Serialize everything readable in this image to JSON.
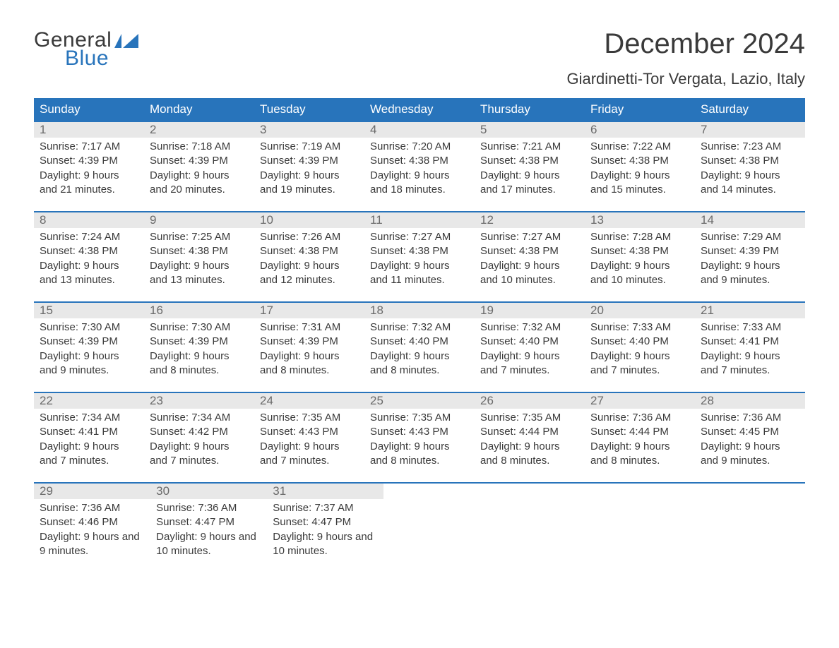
{
  "logo": {
    "text1": "General",
    "text2": "Blue"
  },
  "header": {
    "title": "December 2024",
    "location": "Giardinetti-Tor Vergata, Lazio, Italy"
  },
  "colors": {
    "brand_blue": "#2874bb",
    "band_gray": "#e8e8e8",
    "text_dark": "#3a3a3a",
    "text_mid": "#6a6a6a",
    "bg": "#ffffff"
  },
  "calendar": {
    "day_names": [
      "Sunday",
      "Monday",
      "Tuesday",
      "Wednesday",
      "Thursday",
      "Friday",
      "Saturday"
    ],
    "weeks": [
      [
        {
          "n": "1",
          "sunrise": "7:17 AM",
          "sunset": "4:39 PM",
          "daylight": "9 hours and 21 minutes."
        },
        {
          "n": "2",
          "sunrise": "7:18 AM",
          "sunset": "4:39 PM",
          "daylight": "9 hours and 20 minutes."
        },
        {
          "n": "3",
          "sunrise": "7:19 AM",
          "sunset": "4:39 PM",
          "daylight": "9 hours and 19 minutes."
        },
        {
          "n": "4",
          "sunrise": "7:20 AM",
          "sunset": "4:38 PM",
          "daylight": "9 hours and 18 minutes."
        },
        {
          "n": "5",
          "sunrise": "7:21 AM",
          "sunset": "4:38 PM",
          "daylight": "9 hours and 17 minutes."
        },
        {
          "n": "6",
          "sunrise": "7:22 AM",
          "sunset": "4:38 PM",
          "daylight": "9 hours and 15 minutes."
        },
        {
          "n": "7",
          "sunrise": "7:23 AM",
          "sunset": "4:38 PM",
          "daylight": "9 hours and 14 minutes."
        }
      ],
      [
        {
          "n": "8",
          "sunrise": "7:24 AM",
          "sunset": "4:38 PM",
          "daylight": "9 hours and 13 minutes."
        },
        {
          "n": "9",
          "sunrise": "7:25 AM",
          "sunset": "4:38 PM",
          "daylight": "9 hours and 13 minutes."
        },
        {
          "n": "10",
          "sunrise": "7:26 AM",
          "sunset": "4:38 PM",
          "daylight": "9 hours and 12 minutes."
        },
        {
          "n": "11",
          "sunrise": "7:27 AM",
          "sunset": "4:38 PM",
          "daylight": "9 hours and 11 minutes."
        },
        {
          "n": "12",
          "sunrise": "7:27 AM",
          "sunset": "4:38 PM",
          "daylight": "9 hours and 10 minutes."
        },
        {
          "n": "13",
          "sunrise": "7:28 AM",
          "sunset": "4:38 PM",
          "daylight": "9 hours and 10 minutes."
        },
        {
          "n": "14",
          "sunrise": "7:29 AM",
          "sunset": "4:39 PM",
          "daylight": "9 hours and 9 minutes."
        }
      ],
      [
        {
          "n": "15",
          "sunrise": "7:30 AM",
          "sunset": "4:39 PM",
          "daylight": "9 hours and 9 minutes."
        },
        {
          "n": "16",
          "sunrise": "7:30 AM",
          "sunset": "4:39 PM",
          "daylight": "9 hours and 8 minutes."
        },
        {
          "n": "17",
          "sunrise": "7:31 AM",
          "sunset": "4:39 PM",
          "daylight": "9 hours and 8 minutes."
        },
        {
          "n": "18",
          "sunrise": "7:32 AM",
          "sunset": "4:40 PM",
          "daylight": "9 hours and 8 minutes."
        },
        {
          "n": "19",
          "sunrise": "7:32 AM",
          "sunset": "4:40 PM",
          "daylight": "9 hours and 7 minutes."
        },
        {
          "n": "20",
          "sunrise": "7:33 AM",
          "sunset": "4:40 PM",
          "daylight": "9 hours and 7 minutes."
        },
        {
          "n": "21",
          "sunrise": "7:33 AM",
          "sunset": "4:41 PM",
          "daylight": "9 hours and 7 minutes."
        }
      ],
      [
        {
          "n": "22",
          "sunrise": "7:34 AM",
          "sunset": "4:41 PM",
          "daylight": "9 hours and 7 minutes."
        },
        {
          "n": "23",
          "sunrise": "7:34 AM",
          "sunset": "4:42 PM",
          "daylight": "9 hours and 7 minutes."
        },
        {
          "n": "24",
          "sunrise": "7:35 AM",
          "sunset": "4:43 PM",
          "daylight": "9 hours and 7 minutes."
        },
        {
          "n": "25",
          "sunrise": "7:35 AM",
          "sunset": "4:43 PM",
          "daylight": "9 hours and 8 minutes."
        },
        {
          "n": "26",
          "sunrise": "7:35 AM",
          "sunset": "4:44 PM",
          "daylight": "9 hours and 8 minutes."
        },
        {
          "n": "27",
          "sunrise": "7:36 AM",
          "sunset": "4:44 PM",
          "daylight": "9 hours and 8 minutes."
        },
        {
          "n": "28",
          "sunrise": "7:36 AM",
          "sunset": "4:45 PM",
          "daylight": "9 hours and 9 minutes."
        }
      ],
      [
        {
          "n": "29",
          "sunrise": "7:36 AM",
          "sunset": "4:46 PM",
          "daylight": "9 hours and 9 minutes."
        },
        {
          "n": "30",
          "sunrise": "7:36 AM",
          "sunset": "4:47 PM",
          "daylight": "9 hours and 10 minutes."
        },
        {
          "n": "31",
          "sunrise": "7:37 AM",
          "sunset": "4:47 PM",
          "daylight": "9 hours and 10 minutes."
        },
        null,
        null,
        null,
        null
      ]
    ],
    "labels": {
      "sunrise": "Sunrise: ",
      "sunset": "Sunset: ",
      "daylight": "Daylight: "
    }
  }
}
